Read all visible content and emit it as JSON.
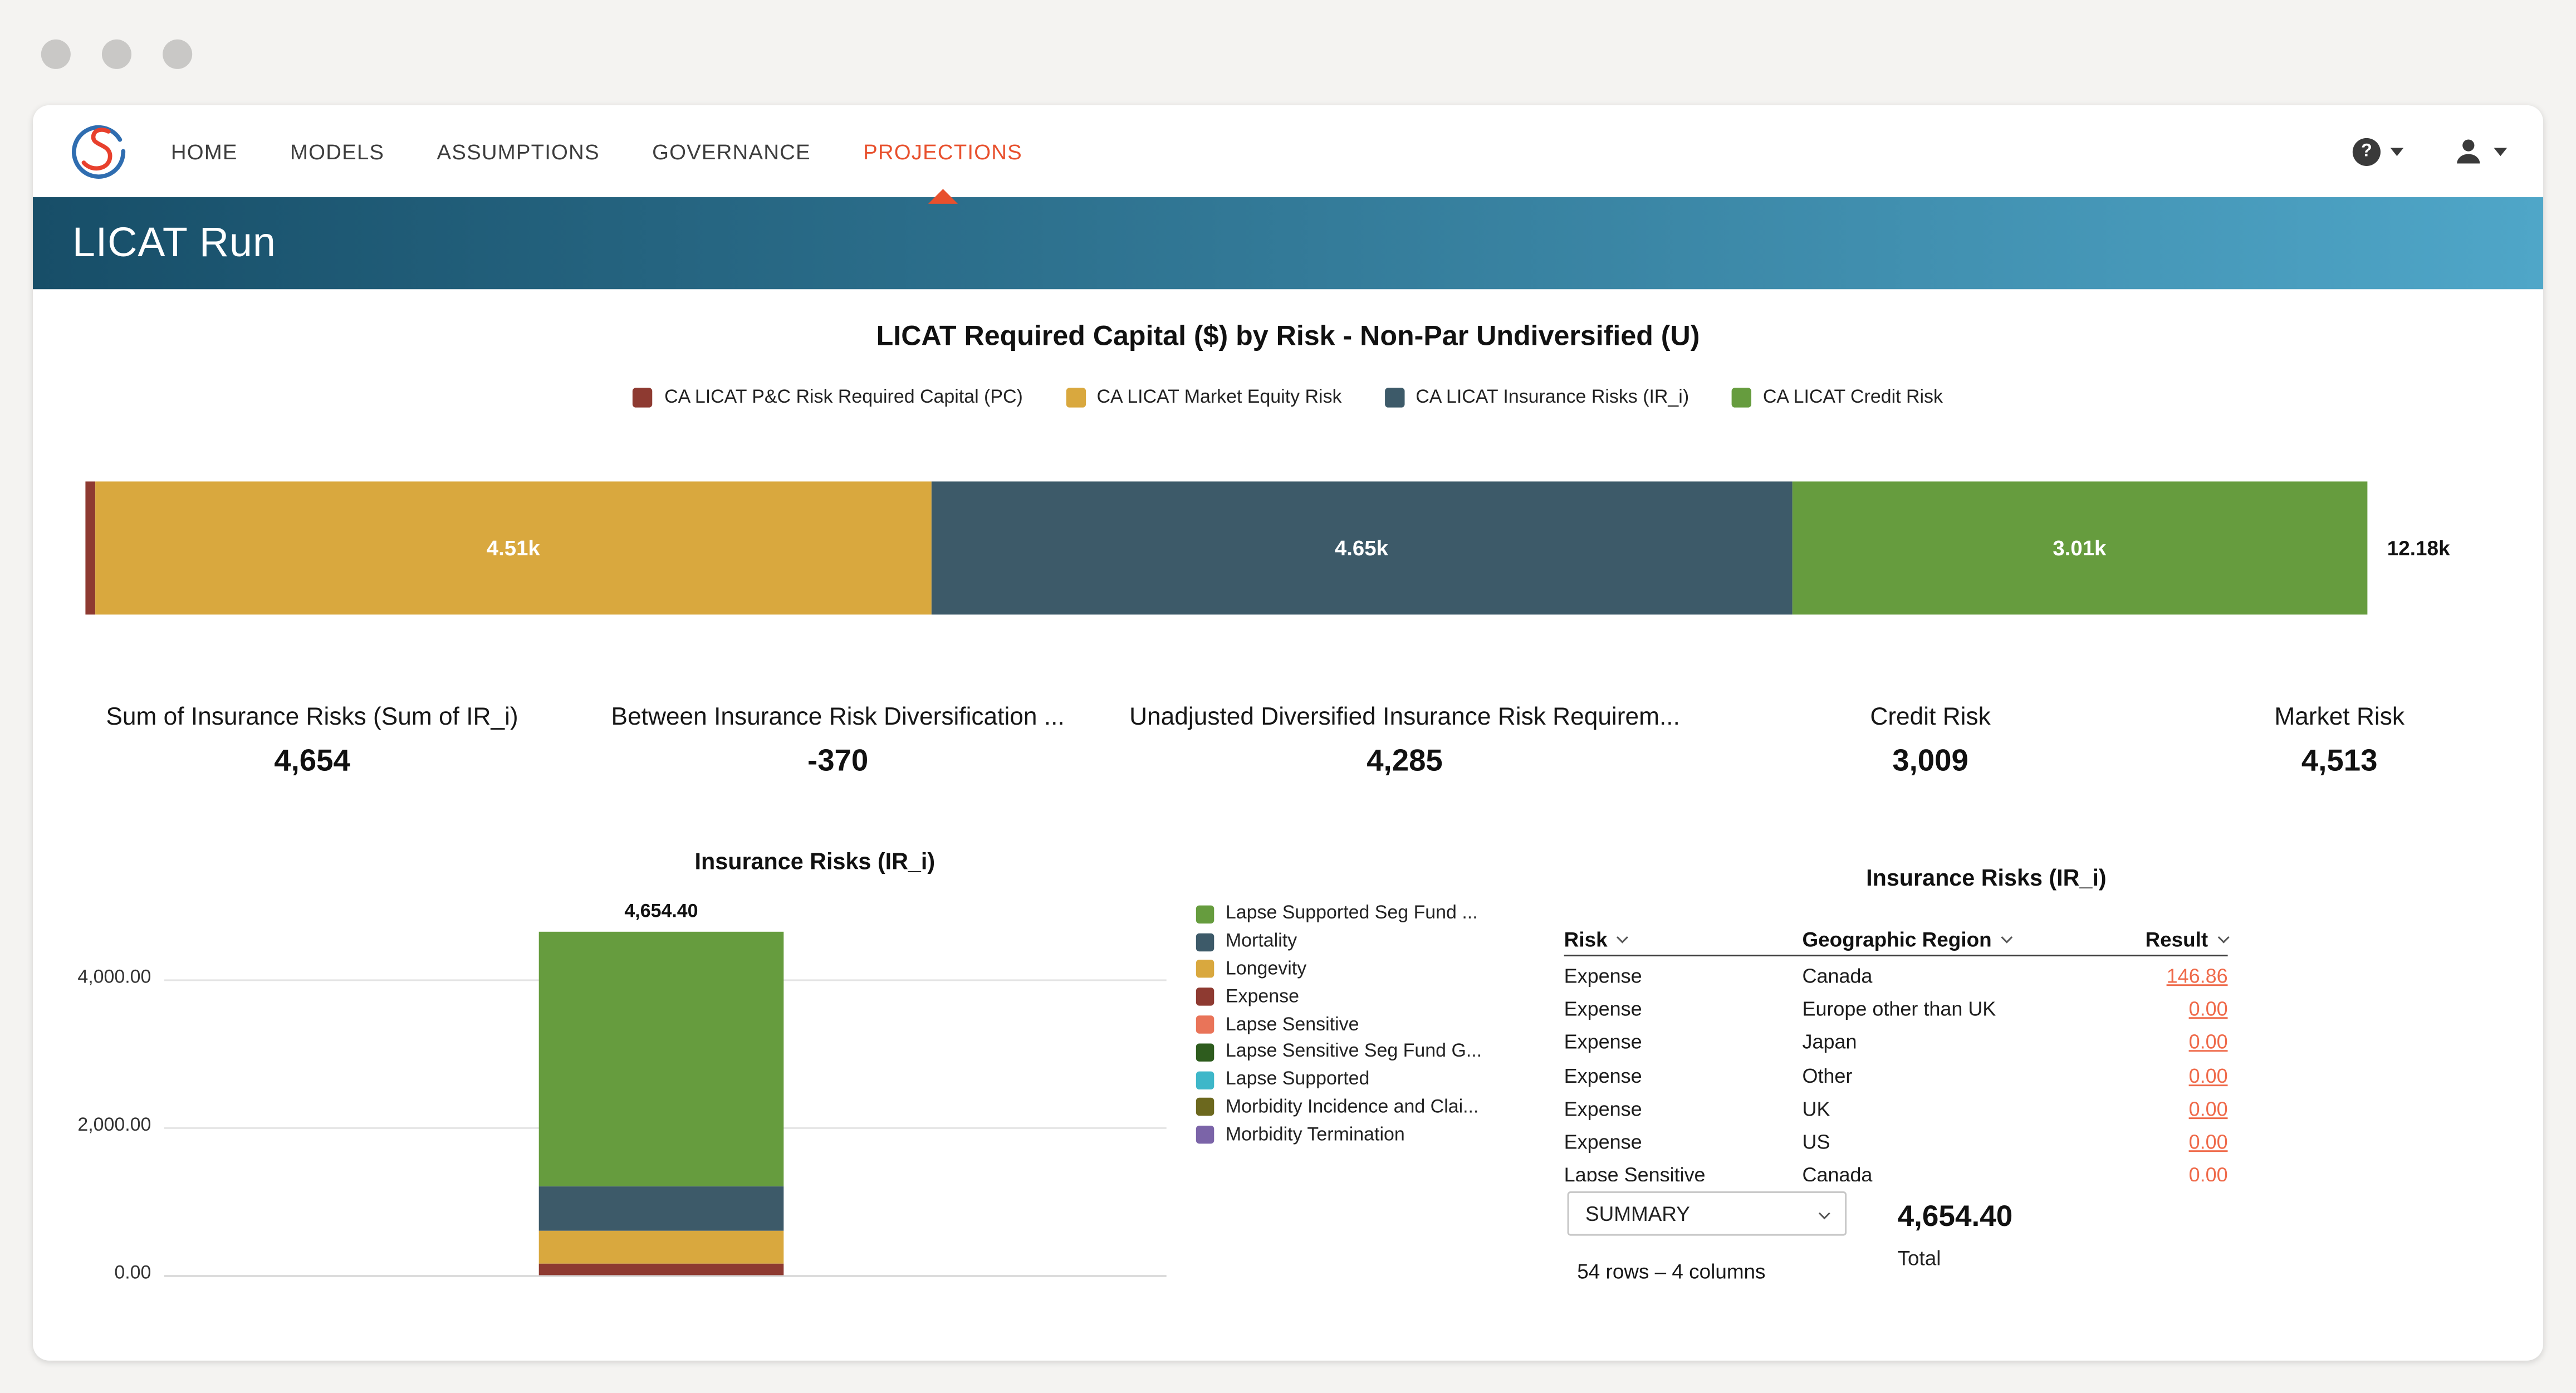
{
  "window": {
    "dots_color": "#c9c8c6"
  },
  "nav": {
    "accent_color": "#e8502d",
    "items": [
      {
        "label": "HOME",
        "active": false
      },
      {
        "label": "MODELS",
        "active": false
      },
      {
        "label": "ASSUMPTIONS",
        "active": false
      },
      {
        "label": "GOVERNANCE",
        "active": false
      },
      {
        "label": "PROJECTIONS",
        "active": true
      }
    ],
    "help_icon": "?"
  },
  "header": {
    "title": "LICAT Run",
    "gradient_left": "#174e68",
    "gradient_right": "#4fa6c8"
  },
  "kpis": [
    {
      "label": "Sum of Insurance Risks (Sum of IR_i)",
      "value": "4,654"
    },
    {
      "label": "Between Insurance Risk Diversification ...",
      "value": "-370"
    },
    {
      "label": "Unadjusted Diversified Insurance Risk Requirem...",
      "value": "4,285"
    },
    {
      "label": "Credit Risk",
      "value": "3,009"
    },
    {
      "label": "Market Risk",
      "value": "4,513"
    }
  ],
  "chart_data": [
    {
      "type": "bar",
      "orientation": "horizontal",
      "stacked": true,
      "title": "LICAT Required Capital ($) by Risk - Non-Par Undiversified (U)",
      "units": "thousands of dollars",
      "total": 12.18,
      "total_label": "12.18k",
      "segments": [
        {
          "name": "CA LICAT P&C Risk Required Capital (PC)",
          "value": 0.01,
          "label": "",
          "color": "#8e3a31"
        },
        {
          "name": "CA LICAT Market Equity Risk",
          "value": 4.51,
          "label": "4.51k",
          "color": "#d9a83e"
        },
        {
          "name": "CA LICAT Insurance Risks (IR_i)",
          "value": 4.65,
          "label": "4.65k",
          "color": "#3d5a69"
        },
        {
          "name": "CA LICAT Credit Risk",
          "value": 3.01,
          "label": "3.01k",
          "color": "#669c3e"
        }
      ]
    },
    {
      "type": "bar",
      "orientation": "vertical",
      "stacked": true,
      "title": "Insurance Risks (IR_i)",
      "total": 4654.4,
      "total_label": "4,654.40",
      "ylim": [
        0,
        5000
      ],
      "yticks": [
        {
          "value": 0,
          "label": "0.00"
        },
        {
          "value": 2000,
          "label": "2,000.00"
        },
        {
          "value": 4000,
          "label": "4,000.00"
        }
      ],
      "segments_bottom_to_top": [
        {
          "name": "Expense",
          "value": 146.86,
          "color": "#8e3a31"
        },
        {
          "name": "Longevity",
          "value": 450.0,
          "color": "#d9a83e"
        },
        {
          "name": "Mortality",
          "value": 600.0,
          "color": "#3d5a69"
        },
        {
          "name": "Lapse Supported Seg Fund",
          "value": 3457.54,
          "color": "#669c3e"
        }
      ],
      "legend": [
        {
          "label": "Lapse Supported Seg Fund ...",
          "color": "#669c3e"
        },
        {
          "label": "Mortality",
          "color": "#3d5a69"
        },
        {
          "label": "Longevity",
          "color": "#d9a83e"
        },
        {
          "label": "Expense",
          "color": "#8e3a31"
        },
        {
          "label": "Lapse Sensitive",
          "color": "#e97459"
        },
        {
          "label": "Lapse Sensitive Seg Fund G...",
          "color": "#2e5c1e"
        },
        {
          "label": "Lapse Supported",
          "color": "#3eb7c9"
        },
        {
          "label": "Morbidity Incidence and Clai...",
          "color": "#6c681e"
        },
        {
          "label": "Morbidity Termination",
          "color": "#7b64a8"
        }
      ]
    }
  ],
  "table": {
    "title": "Insurance Risks (IR_i)",
    "columns": [
      "Risk",
      "Geographic Region",
      "Result"
    ],
    "rows": [
      {
        "risk": "Expense",
        "region": "Canada",
        "result": "146.86"
      },
      {
        "risk": "Expense",
        "region": "Europe other than UK",
        "result": "0.00"
      },
      {
        "risk": "Expense",
        "region": "Japan",
        "result": "0.00"
      },
      {
        "risk": "Expense",
        "region": "Other",
        "result": "0.00"
      },
      {
        "risk": "Expense",
        "region": "UK",
        "result": "0.00"
      },
      {
        "risk": "Expense",
        "region": "US",
        "result": "0.00"
      },
      {
        "risk": "Lapse Sensitive",
        "region": "Canada",
        "result": "0.00"
      }
    ],
    "result_color": "#ef6a4a",
    "summary_label": "SUMMARY",
    "row_count_text": "54 rows – 4 columns",
    "total_value": "4,654.40",
    "total_label": "Total"
  }
}
